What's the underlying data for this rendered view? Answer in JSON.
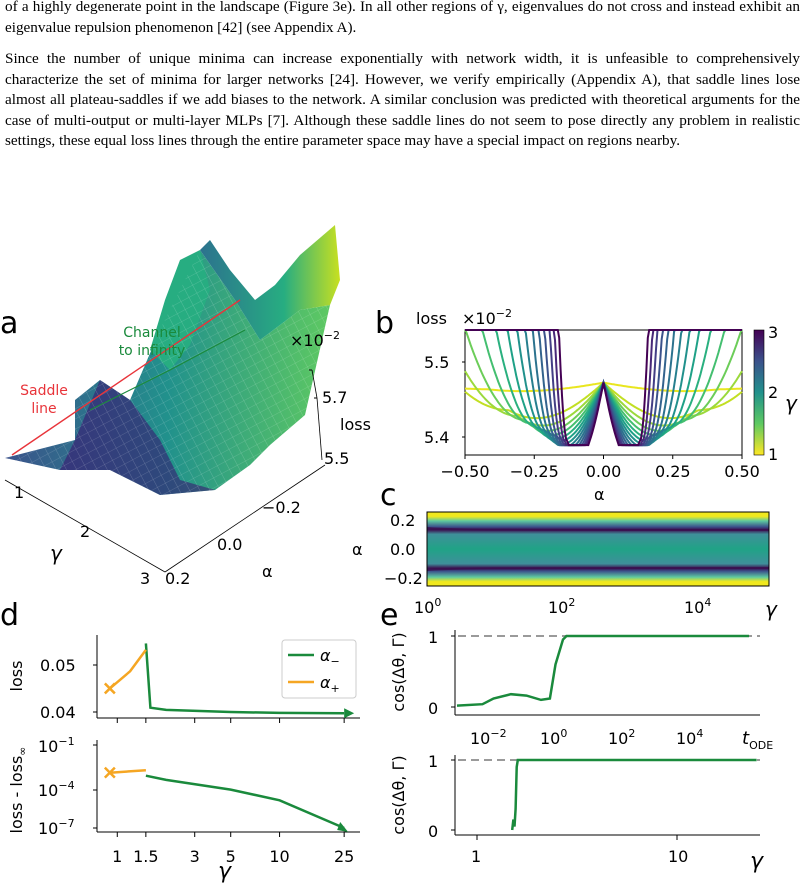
{
  "text": {
    "para1": "of a highly degenerate point in the landscape (Figure 3e). In all other regions of γ, eigenvalues do not cross and instead exhibit an eigenvalue repulsion phenomenon [42] (see Appendix A).",
    "para2": "Since the number of unique minima can increase exponentially with network width, it is unfeasible to comprehensively characterize the set of minima for larger networks [24]. However, we verify empirically (Appendix A), that saddle lines lose almost all plateau-saddles if we add biases to the network. A similar conclusion was predicted with theoretical arguments for the case of multi-output or multi-layer MLPs [7]. Although these saddle lines do not seem to pose directly any problem in realistic settings, these equal loss lines through the entire parameter space may have a special impact on regions nearby."
  },
  "colors": {
    "green": "#1a8a3c",
    "orange": "#f5a623",
    "red": "#e8343a",
    "teal": "#20a386",
    "yellow": "#f0e81e",
    "purple": "#3b0f4f",
    "grey": "#9a9a9a"
  },
  "panels": {
    "a": {
      "letter": "a",
      "annot_saddle": [
        "Saddle",
        "line"
      ],
      "annot_channel": [
        "Channel",
        "to infinity"
      ],
      "scale": "×10",
      "scale_exp": "−2",
      "zlabel": "loss",
      "zticks": [
        "5.7",
        "5.5"
      ],
      "gamma_label": "γ",
      "gamma_ticks": [
        "1",
        "2",
        "3"
      ],
      "alpha_label": "α",
      "alpha_ticks": [
        "−0.2",
        "0.0",
        "0.2"
      ]
    },
    "b": {
      "letter": "b",
      "ylabel": "loss",
      "scale": "×10",
      "scale_exp": "−2",
      "yticks": [
        "5.5",
        "5.4"
      ],
      "xticks": [
        "−0.50",
        "−0.25",
        "0.00",
        "0.25",
        "0.50"
      ],
      "xlabel": "α",
      "colorbar_ticks": [
        "3",
        "2",
        "1"
      ],
      "colorbar_label": "γ"
    },
    "c": {
      "letter": "c",
      "yticks": [
        "0.2",
        "0.0",
        "−0.2"
      ],
      "ylabel": "α",
      "xticks": [
        "10",
        "10",
        "10"
      ],
      "xexps": [
        "0",
        "2",
        "4"
      ],
      "xlabel": "γ"
    },
    "d": {
      "letter": "d",
      "ylabel_top": "loss",
      "yticks_top": [
        "0.05",
        "0.04"
      ],
      "ylabel_bottom": "loss - loss",
      "ylabel_bottom_sub": "∞",
      "yticks_bottom": [
        "10",
        "10",
        "10"
      ],
      "yexps_bottom": [
        "−1",
        "−4",
        "−7"
      ],
      "xticks": [
        "1",
        "1.5",
        "3",
        "5",
        "10",
        "25"
      ],
      "xlabel": "γ",
      "legend": [
        {
          "label": "α",
          "sub": "−"
        },
        {
          "label": "α",
          "sub": "+"
        }
      ]
    },
    "e": {
      "letter": "e",
      "ylabel": "cos(Δθ, Γ)",
      "yticks": [
        "1",
        "0"
      ],
      "xticks_top": [
        "10",
        "10",
        "10",
        "10"
      ],
      "xexps_top": [
        "−2",
        "0",
        "2",
        "4"
      ],
      "xlabel_top": "t",
      "xlabel_top_sub": "ODE",
      "xticks_bottom": [
        "1",
        "10"
      ],
      "xlabel_bottom": "γ"
    }
  },
  "chart_data": [
    {
      "type": "line",
      "panel": "b",
      "ylabel": "loss ×10^-2",
      "xlabel": "α",
      "xlim": [
        -0.5,
        0.5
      ],
      "ylim": [
        5.38,
        5.57
      ],
      "color_scale": "γ from 1 (yellow) to 3 (purple)",
      "series": [
        {
          "gamma": 1.0,
          "x": [
            -0.5,
            0.0,
            0.5
          ],
          "y": [
            5.5,
            5.49,
            5.5
          ]
        },
        {
          "gamma": 3.0,
          "x": [
            -0.11,
            0.0,
            0.13
          ],
          "y": [
            5.4,
            5.49,
            5.4
          ]
        }
      ]
    },
    {
      "type": "line",
      "panel": "d-top",
      "ylabel": "loss",
      "xlabel": "γ",
      "series": [
        {
          "name": "α−",
          "x": [
            1.5,
            1.6,
            2,
            5,
            10,
            25
          ],
          "y": [
            0.056,
            0.041,
            0.0405,
            0.04,
            0.0398,
            0.0397
          ]
        },
        {
          "name": "α+",
          "x": [
            0.9,
            1.2,
            1.5
          ],
          "y": [
            0.0455,
            0.0495,
            0.0545
          ]
        }
      ]
    },
    {
      "type": "line",
      "panel": "d-bottom",
      "ylabel": "loss - loss∞",
      "xlabel": "γ",
      "yscale": "log",
      "series": [
        {
          "name": "α−",
          "x": [
            1.5,
            2,
            5,
            10,
            25
          ],
          "y": [
            0.0006,
            0.0003,
            6e-05,
            1e-05,
            1e-07
          ]
        },
        {
          "name": "α+",
          "x": [
            0.9,
            1.5
          ],
          "y": [
            0.001,
            0.0015
          ]
        }
      ]
    },
    {
      "type": "line",
      "panel": "e-top",
      "ylabel": "cos(Δθ, Γ)",
      "xlabel": "t_ODE",
      "xscale": "log",
      "series": [
        {
          "x": [
            0.001,
            0.01,
            0.03,
            0.2,
            1,
            100000
          ],
          "y": [
            0.02,
            0.12,
            0.18,
            0.1,
            1.0,
            1.0
          ]
        }
      ]
    },
    {
      "type": "line",
      "panel": "e-bottom",
      "ylabel": "cos(Δθ, Γ)",
      "xlabel": "γ",
      "xscale": "log",
      "series": [
        {
          "x": [
            1.5,
            1.55,
            1.6,
            2,
            25
          ],
          "y": [
            0.0,
            0.2,
            1.0,
            1.0,
            1.0
          ]
        }
      ]
    }
  ]
}
